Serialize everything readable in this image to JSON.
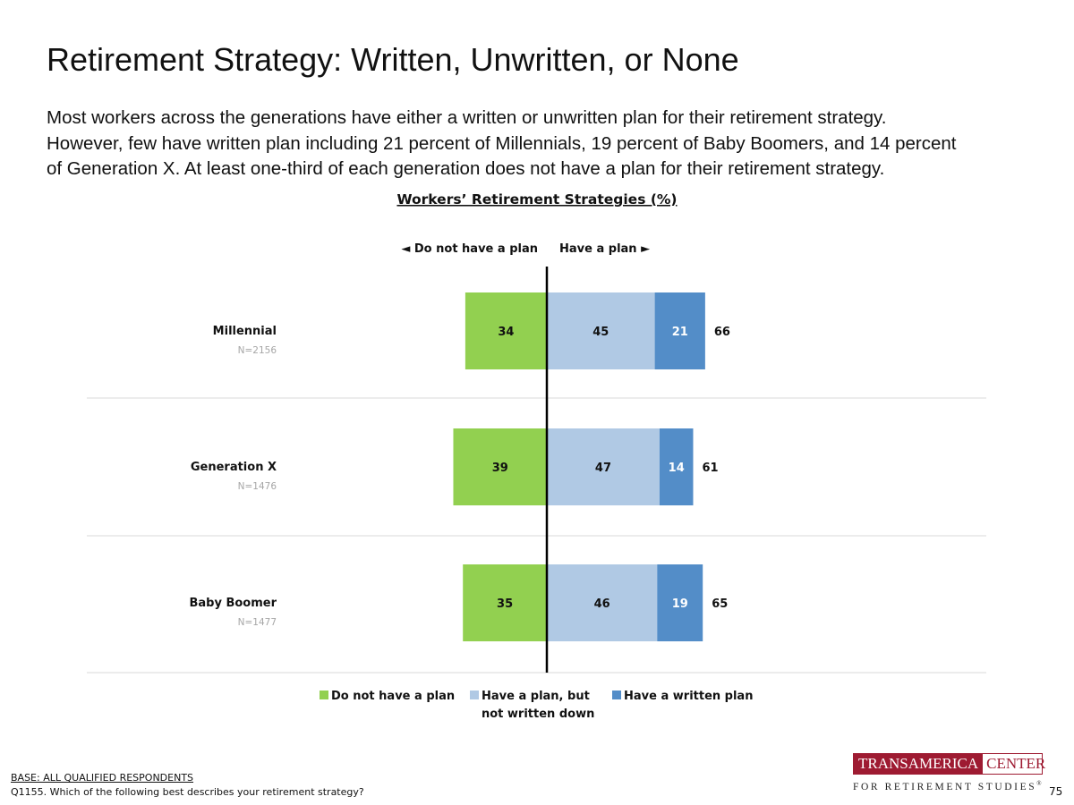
{
  "page": {
    "title": "Retirement Strategy: Written, Unwritten, or None",
    "lead": [
      "Most workers across the generations have either a written or unwritten plan for their retirement strategy.",
      "However, few have written plan including 21 percent of Millennials, 19 percent of Baby Boomers, and 14 percent",
      "of Generation X. At least one-third of each generation does not have a plan for their retirement strategy."
    ],
    "base_label": "BASE: ALL QUALIFIED RESPONDENTS",
    "question": "Q1155. Which of the following best describes your retirement strategy?",
    "page_number": "75",
    "logo": {
      "part1": "TRANSAMERICA",
      "part2": "CENTER",
      "sub": "FOR RETIREMENT STUDIES",
      "reg": "®"
    }
  },
  "chart_data": {
    "type": "bar",
    "orientation": "horizontal-diverging",
    "title": "Workers’ Retirement Strategies (%)",
    "direction_left": "◄ Do not have a plan",
    "direction_right": "Have a plan ►",
    "categories": [
      "Millennial",
      "Generation X",
      "Baby Boomer"
    ],
    "sample_sizes": [
      "N=2156",
      "N=1476",
      "N=1477"
    ],
    "series": [
      {
        "name": "Do not have a plan",
        "legend": [
          "Do not have a plan"
        ],
        "color": "#92d050",
        "side": "left",
        "values": [
          34,
          39,
          35
        ]
      },
      {
        "name": "Have a plan, but not written down",
        "legend": [
          "Have a plan, but",
          "not written down"
        ],
        "color": "#b0c9e4",
        "side": "right",
        "values": [
          45,
          47,
          46
        ]
      },
      {
        "name": "Have a written plan",
        "legend": [
          "Have a written plan"
        ],
        "color": "#538dc8",
        "side": "right",
        "values": [
          21,
          14,
          19
        ]
      }
    ],
    "totals_have_plan": [
      66,
      61,
      65
    ],
    "legend_position": "bottom"
  }
}
